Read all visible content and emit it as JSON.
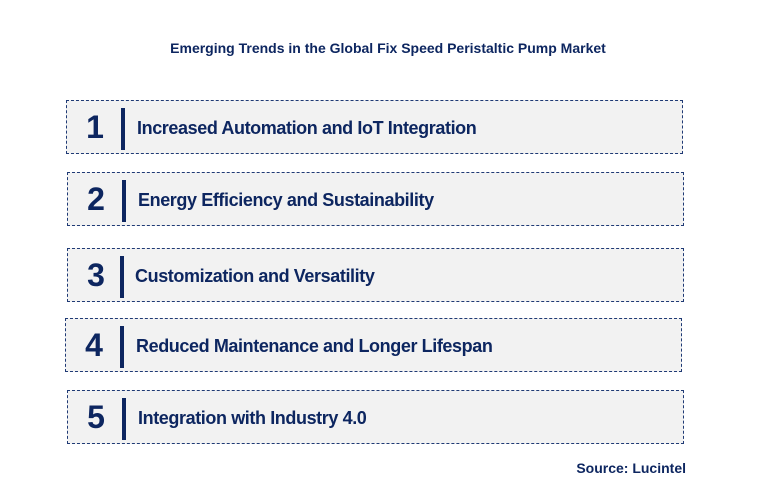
{
  "title": "Emerging Trends in the Global Fix Speed Peristaltic Pump Market",
  "trends": [
    {
      "number": "1",
      "label": "Increased Automation and IoT Integration"
    },
    {
      "number": "2",
      "label": "Energy Efficiency and Sustainability"
    },
    {
      "number": "3",
      "label": "Customization and Versatility"
    },
    {
      "number": "4",
      "label": "Reduced Maintenance and Longer Lifespan"
    },
    {
      "number": "5",
      "label": "Integration with Industry 4.0"
    }
  ],
  "source": "Source: Lucintel",
  "colors": {
    "text": "#0d2660",
    "box": "#f2f2f2"
  }
}
